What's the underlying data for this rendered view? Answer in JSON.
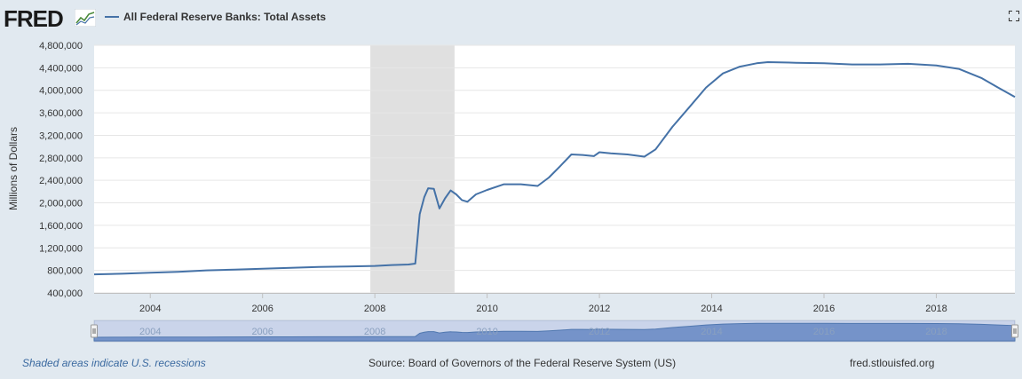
{
  "header": {
    "logo": "FRED",
    "series_label": "All Federal Reserve Banks: Total Assets"
  },
  "footer": {
    "recession_note": "Shaded areas indicate U.S. recessions",
    "source": "Source: Board of Governors of the Federal Reserve System (US)",
    "site": "fred.stlouisfed.org"
  },
  "colors": {
    "line": "#4572a7",
    "recession": "#e0e0e0",
    "background": "#e1e9f0"
  },
  "chart_data": {
    "type": "line",
    "title": "All Federal Reserve Banks: Total Assets",
    "ylabel": "Millions of Dollars",
    "xlabel": "",
    "xlim": [
      2003.0,
      2019.4
    ],
    "ylim": [
      400000,
      4800000
    ],
    "grid": true,
    "legend": "top-left",
    "y_ticks": [
      400000,
      800000,
      1200000,
      1600000,
      2000000,
      2400000,
      2800000,
      3200000,
      3600000,
      4000000,
      4400000,
      4800000
    ],
    "y_tick_labels": [
      "400,000",
      "800,000",
      "1,200,000",
      "1,600,000",
      "2,000,000",
      "2,400,000",
      "2,800,000",
      "3,200,000",
      "3,600,000",
      "4,000,000",
      "4,400,000",
      "4,800,000"
    ],
    "x_ticks": [
      2004,
      2006,
      2008,
      2010,
      2012,
      2014,
      2016,
      2018
    ],
    "x_tick_labels": [
      "2004",
      "2006",
      "2008",
      "2010",
      "2012",
      "2014",
      "2016",
      "2018"
    ],
    "recessions": [
      {
        "start": 2007.92,
        "end": 2009.42
      }
    ],
    "series": [
      {
        "name": "All Federal Reserve Banks: Total Assets",
        "x": [
          2003.0,
          2003.5,
          2004.0,
          2004.5,
          2005.0,
          2005.5,
          2006.0,
          2006.5,
          2007.0,
          2007.5,
          2008.0,
          2008.3,
          2008.6,
          2008.72,
          2008.8,
          2008.88,
          2008.95,
          2009.05,
          2009.15,
          2009.25,
          2009.35,
          2009.45,
          2009.55,
          2009.65,
          2009.8,
          2010.0,
          2010.3,
          2010.6,
          2010.9,
          2011.1,
          2011.3,
          2011.5,
          2011.7,
          2011.9,
          2012.0,
          2012.2,
          2012.5,
          2012.8,
          2013.0,
          2013.3,
          2013.6,
          2013.9,
          2014.2,
          2014.5,
          2014.8,
          2015.0,
          2015.5,
          2016.0,
          2016.5,
          2017.0,
          2017.5,
          2018.0,
          2018.4,
          2018.8,
          2019.1,
          2019.4
        ],
        "values": [
          730000,
          740000,
          760000,
          775000,
          800000,
          815000,
          830000,
          845000,
          860000,
          870000,
          880000,
          895000,
          905000,
          920000,
          1800000,
          2100000,
          2260000,
          2250000,
          1900000,
          2080000,
          2220000,
          2150000,
          2050000,
          2020000,
          2150000,
          2230000,
          2330000,
          2330000,
          2300000,
          2450000,
          2650000,
          2860000,
          2850000,
          2830000,
          2900000,
          2880000,
          2860000,
          2820000,
          2950000,
          3350000,
          3700000,
          4050000,
          4300000,
          4420000,
          4480000,
          4500000,
          4490000,
          4480000,
          4460000,
          4460000,
          4470000,
          4440000,
          4380000,
          4220000,
          4050000,
          3880000
        ]
      }
    ],
    "navigator_ticks": [
      "2004",
      "2006",
      "2008",
      "2010",
      "2012",
      "2014",
      "2016",
      "2018"
    ]
  }
}
